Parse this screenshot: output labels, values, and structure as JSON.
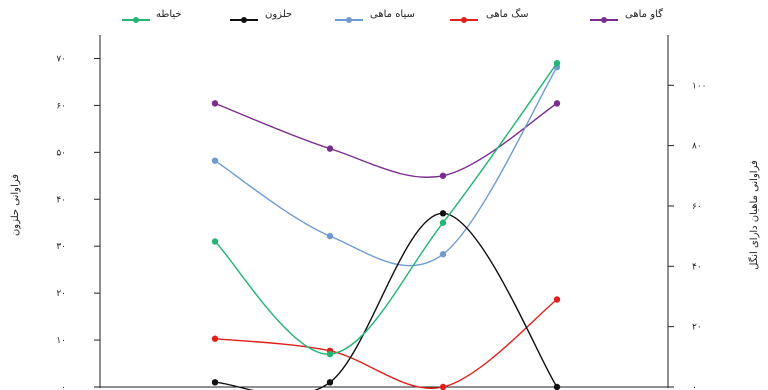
{
  "chart_data": {
    "type": "line",
    "title": "",
    "x": [
      1,
      2,
      3,
      4
    ],
    "xlabel": "",
    "left_axis": {
      "label": "فراوانی حلزون",
      "ylim": [
        0,
        75
      ],
      "ticks": [
        0,
        10,
        20,
        30,
        40,
        50,
        60,
        70
      ],
      "tick_labels": [
        "۰",
        "۱۰",
        "۲۰",
        "۳۰",
        "۴۰",
        "۵۰",
        "۶۰",
        "۷۰"
      ]
    },
    "right_axis": {
      "label": "فراوانی ماهیان دارای انگل",
      "ylim": [
        0,
        115
      ],
      "ticks": [
        0,
        20,
        40,
        60,
        80,
        100
      ],
      "tick_labels": [
        "۰",
        "۲۰",
        "۴۰",
        "۶۰",
        "۸۰",
        "۱۰۰"
      ]
    },
    "legend_position": "top",
    "grid": false,
    "series": [
      {
        "name": "گاو ماهی",
        "axis": "right",
        "color": "#7b2d8e",
        "values": [
          94,
          79,
          70,
          94
        ]
      },
      {
        "name": "سگ ماهی",
        "axis": "right",
        "color": "#e0201b",
        "values": [
          16,
          12,
          0,
          29
        ]
      },
      {
        "name": "سیاه ماهی",
        "axis": "right",
        "color": "#6f9bd1",
        "values": [
          75,
          50,
          44,
          106
        ]
      },
      {
        "name": "حلزون",
        "axis": "left",
        "color": "#111111",
        "values": [
          1,
          1,
          37,
          0
        ]
      },
      {
        "name": "خیاطه",
        "axis": "left",
        "color": "#22b573",
        "values": [
          31,
          7,
          35,
          69
        ]
      }
    ]
  }
}
